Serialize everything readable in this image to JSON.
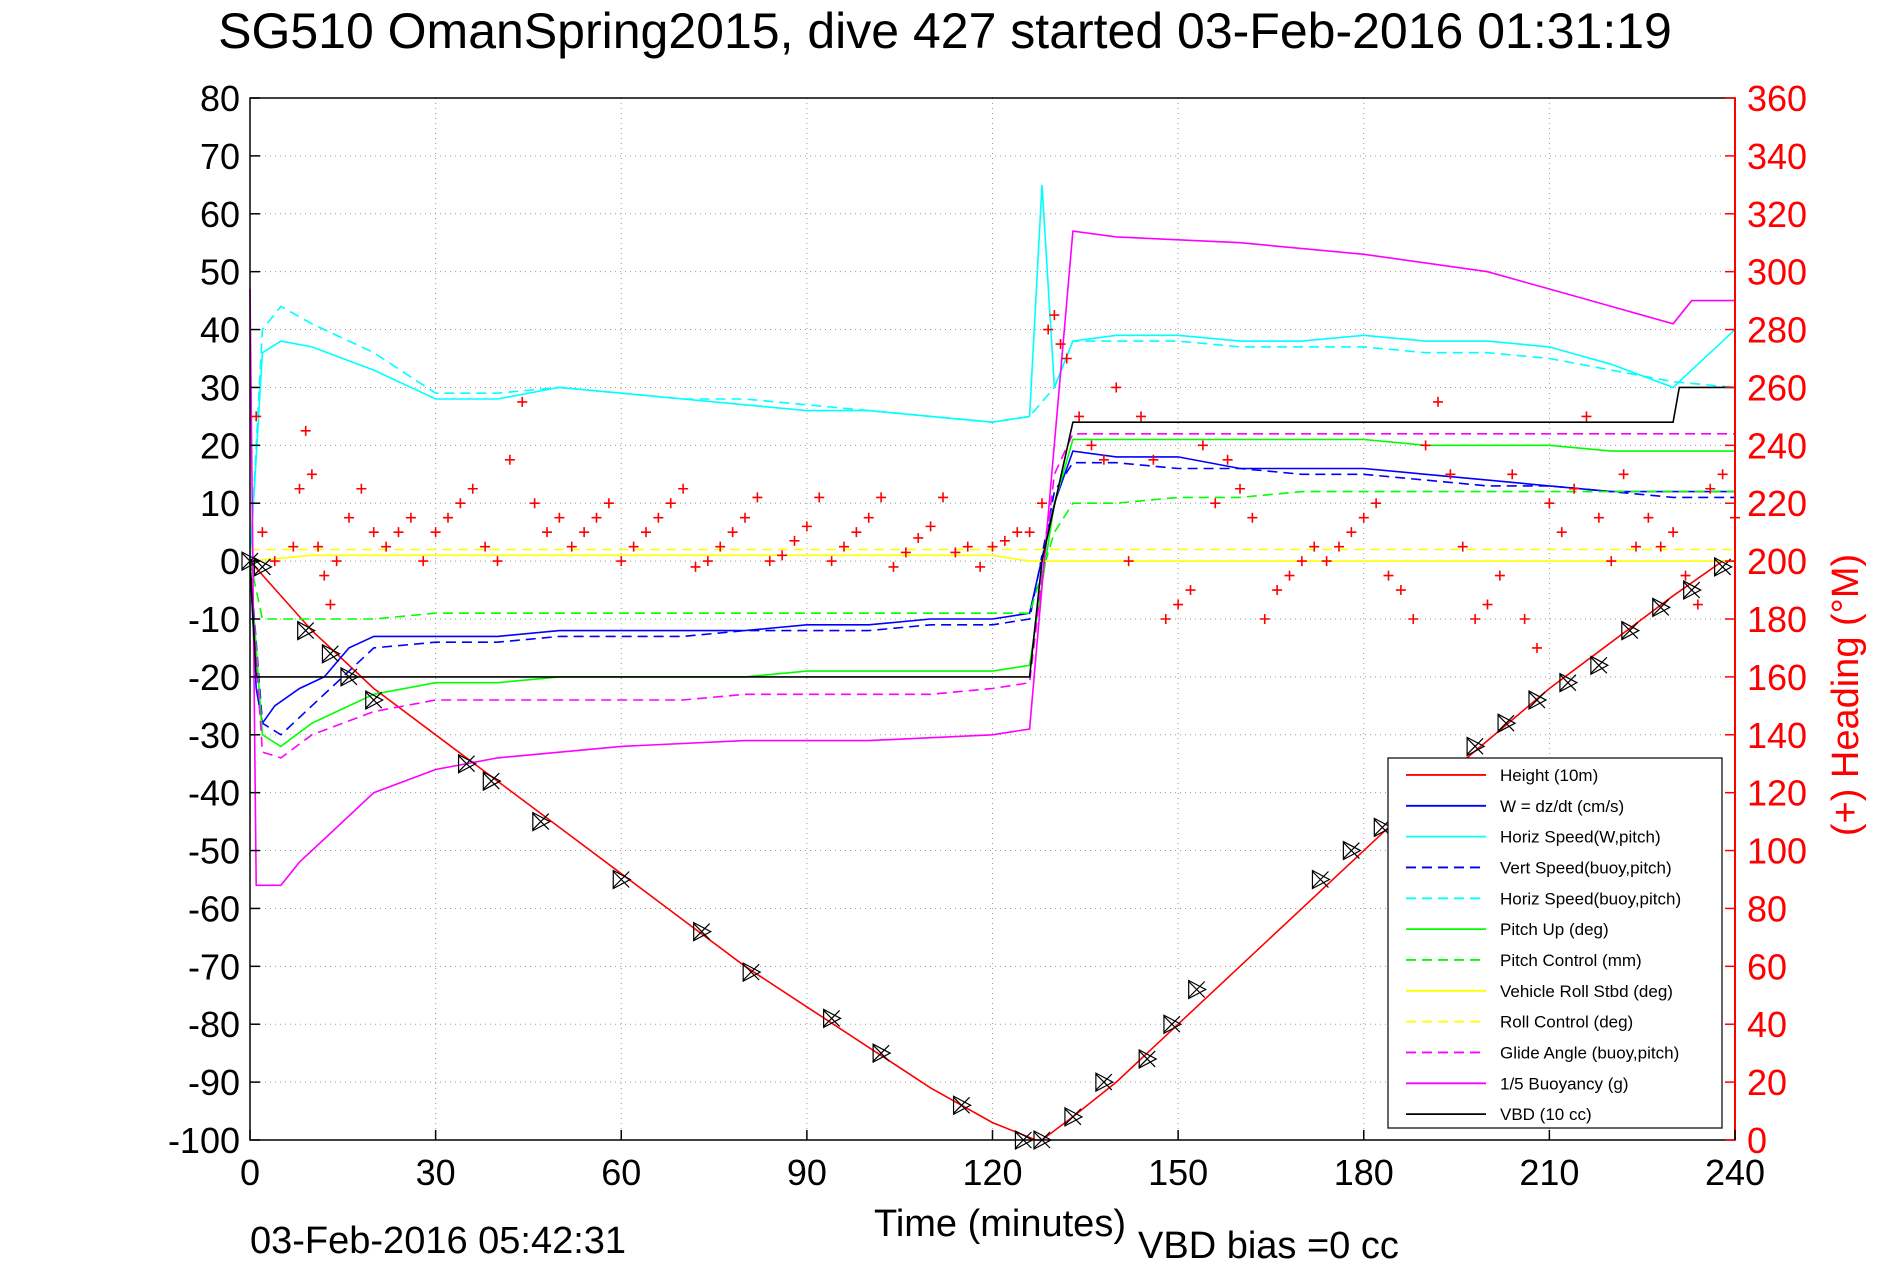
{
  "figure": {
    "title": "SG510 OmanSpring2015, dive 427 started 03-Feb-2016 01:31:19",
    "footer_left": "03-Feb-2016 05:42:31",
    "footer_right": "VBD bias =0 cc"
  },
  "chart_data": {
    "type": "line",
    "xlabel": "Time (minutes)",
    "ylabel": "",
    "ylabel_right": "(+) Heading (°M)",
    "xlim": [
      0,
      240
    ],
    "ylim": [
      -100,
      80
    ],
    "ylim_right": [
      0,
      360
    ],
    "xticks": [
      0,
      30,
      60,
      90,
      120,
      150,
      180,
      210,
      240
    ],
    "yticks": [
      -100,
      -90,
      -80,
      -70,
      -60,
      -50,
      -40,
      -30,
      -20,
      -10,
      0,
      10,
      20,
      30,
      40,
      50,
      60,
      70,
      80
    ],
    "yticks_right": [
      0,
      20,
      40,
      60,
      80,
      100,
      120,
      140,
      160,
      180,
      200,
      220,
      240,
      260,
      280,
      300,
      320,
      340,
      360
    ],
    "grid": true,
    "legend_position": "bottom-right",
    "colors": {
      "height": "#ff0000",
      "w": "#0000ff",
      "horiz": "#00ffff",
      "pitch": "#00ff00",
      "roll": "#ffff00",
      "glide": "#ff00ff",
      "buoyancy": "#ff00ff",
      "vbd": "#000000",
      "heading": "#ff0000",
      "right_axis": "#ff0000"
    },
    "series": [
      {
        "name": "Height (10m)",
        "style": "solid",
        "color": "#ff0000",
        "x": [
          0,
          10,
          20,
          30,
          40,
          50,
          60,
          70,
          80,
          90,
          100,
          110,
          120,
          127,
          128,
          133,
          140,
          150,
          160,
          170,
          180,
          190,
          200,
          210,
          220,
          230,
          238,
          240
        ],
        "y": [
          0,
          -12,
          -22,
          -30,
          -38,
          -46,
          -54,
          -62,
          -70,
          -77,
          -84,
          -91,
          -97,
          -100,
          -100,
          -96,
          -90,
          -80,
          -70,
          -60,
          -50,
          -40,
          -31,
          -22,
          -14,
          -6,
          0,
          0
        ]
      },
      {
        "name": "W = dz/dt (cm/s)",
        "style": "solid",
        "color": "#0000ff",
        "x": [
          0,
          1,
          2,
          4,
          8,
          12,
          16,
          20,
          30,
          40,
          50,
          60,
          70,
          80,
          90,
          100,
          110,
          120,
          126,
          130,
          133,
          140,
          150,
          160,
          170,
          180,
          190,
          200,
          210,
          220,
          230,
          240
        ],
        "y": [
          0,
          -22,
          -28,
          -25,
          -22,
          -20,
          -15,
          -13,
          -13,
          -13,
          -12,
          -12,
          -12,
          -12,
          -11,
          -11,
          -10,
          -10,
          -9,
          10,
          19,
          18,
          18,
          16,
          16,
          16,
          15,
          14,
          13,
          12,
          12,
          12
        ]
      },
      {
        "name": "Horiz Speed(W,pitch)",
        "style": "solid",
        "color": "#00ffff",
        "x": [
          0,
          2,
          5,
          10,
          20,
          30,
          40,
          50,
          60,
          70,
          80,
          90,
          100,
          110,
          120,
          126,
          128,
          130,
          133,
          140,
          150,
          160,
          170,
          180,
          190,
          200,
          210,
          220,
          230,
          240
        ],
        "y": [
          0,
          36,
          38,
          37,
          33,
          28,
          28,
          30,
          29,
          28,
          27,
          26,
          26,
          25,
          24,
          25,
          65,
          30,
          38,
          39,
          39,
          38,
          38,
          39,
          38,
          38,
          37,
          34,
          30,
          40
        ]
      },
      {
        "name": "Vert Speed(buoy,pitch)",
        "style": "dashed",
        "color": "#0000ff",
        "x": [
          0,
          2,
          5,
          10,
          20,
          30,
          40,
          50,
          60,
          70,
          80,
          90,
          100,
          110,
          120,
          126,
          130,
          133,
          140,
          150,
          160,
          170,
          180,
          190,
          200,
          210,
          220,
          230,
          240
        ],
        "y": [
          0,
          -28,
          -30,
          -25,
          -15,
          -14,
          -14,
          -13,
          -13,
          -13,
          -12,
          -12,
          -12,
          -11,
          -11,
          -10,
          12,
          17,
          17,
          16,
          16,
          15,
          15,
          14,
          13,
          13,
          12,
          11,
          11
        ]
      },
      {
        "name": "Horiz Speed(buoy,pitch)",
        "style": "dashed",
        "color": "#00ffff",
        "x": [
          0,
          2,
          5,
          10,
          20,
          30,
          40,
          50,
          60,
          70,
          80,
          90,
          100,
          110,
          120,
          126,
          130,
          133,
          140,
          150,
          160,
          170,
          180,
          190,
          200,
          210,
          220,
          230,
          240
        ],
        "y": [
          0,
          40,
          44,
          41,
          36,
          29,
          29,
          30,
          29,
          28,
          28,
          27,
          26,
          25,
          24,
          25,
          30,
          38,
          38,
          38,
          37,
          37,
          37,
          36,
          36,
          35,
          33,
          31,
          30
        ]
      },
      {
        "name": "Pitch Up (deg)",
        "style": "solid",
        "color": "#00ff00",
        "x": [
          0,
          2,
          5,
          10,
          20,
          30,
          40,
          50,
          60,
          70,
          80,
          90,
          100,
          110,
          120,
          126,
          130,
          133,
          140,
          150,
          160,
          170,
          180,
          190,
          200,
          210,
          220,
          230,
          240
        ],
        "y": [
          0,
          -30,
          -32,
          -28,
          -23,
          -21,
          -21,
          -20,
          -20,
          -20,
          -20,
          -19,
          -19,
          -19,
          -19,
          -18,
          10,
          21,
          21,
          21,
          21,
          21,
          21,
          20,
          20,
          20,
          19,
          19,
          19
        ]
      },
      {
        "name": "Pitch Control (mm)",
        "style": "dashed",
        "color": "#00ff00",
        "x": [
          0,
          2,
          5,
          10,
          20,
          30,
          40,
          50,
          60,
          70,
          80,
          90,
          100,
          110,
          120,
          126,
          130,
          133,
          140,
          150,
          160,
          170,
          180,
          190,
          200,
          210,
          220,
          230,
          240
        ],
        "y": [
          0,
          -10,
          -10,
          -10,
          -10,
          -9,
          -9,
          -9,
          -9,
          -9,
          -9,
          -9,
          -9,
          -9,
          -9,
          -9,
          5,
          10,
          10,
          11,
          11,
          12,
          12,
          12,
          12,
          12,
          12,
          12,
          12
        ]
      },
      {
        "name": "Vehicle Roll Stbd (deg)",
        "style": "solid",
        "color": "#ffff00",
        "x": [
          0,
          10,
          20,
          30,
          40,
          50,
          60,
          70,
          80,
          90,
          100,
          110,
          120,
          126,
          130,
          140,
          150,
          160,
          170,
          180,
          190,
          200,
          210,
          220,
          230,
          240
        ],
        "y": [
          0,
          1,
          1,
          1,
          1,
          1,
          1,
          1,
          1,
          1,
          1,
          1,
          1,
          0,
          0,
          0,
          0,
          0,
          0,
          0,
          0,
          0,
          0,
          0,
          0,
          0
        ]
      },
      {
        "name": "Roll Control (deg)",
        "style": "dashed",
        "color": "#ffff00",
        "x": [
          0,
          10,
          20,
          30,
          40,
          50,
          60,
          70,
          80,
          90,
          100,
          110,
          120,
          126,
          130,
          140,
          150,
          160,
          170,
          180,
          190,
          200,
          210,
          220,
          230,
          240
        ],
        "y": [
          2,
          2,
          2,
          2,
          2,
          2,
          2,
          2,
          2,
          2,
          2,
          2,
          2,
          2,
          2,
          2,
          2,
          2,
          2,
          2,
          2,
          2,
          2,
          2,
          2,
          2
        ]
      },
      {
        "name": "Glide Angle (buoy,pitch)",
        "style": "dashed",
        "color": "#ff00ff",
        "x": [
          0,
          2,
          5,
          10,
          20,
          30,
          40,
          50,
          60,
          70,
          80,
          90,
          100,
          110,
          120,
          126,
          130,
          133,
          140,
          150,
          160,
          170,
          180,
          190,
          200,
          210,
          220,
          230,
          240
        ],
        "y": [
          0,
          -33,
          -34,
          -30,
          -26,
          -24,
          -24,
          -24,
          -24,
          -24,
          -23,
          -23,
          -23,
          -23,
          -22,
          -21,
          15,
          22,
          22,
          22,
          22,
          22,
          22,
          22,
          22,
          22,
          22,
          22,
          22
        ]
      },
      {
        "name": "1/5 Buoyancy (g)",
        "style": "solid",
        "color": "#ff00ff",
        "x": [
          0,
          1,
          5,
          8,
          12,
          20,
          30,
          40,
          60,
          80,
          100,
          120,
          126,
          133,
          140,
          160,
          180,
          200,
          210,
          220,
          230,
          233,
          240
        ],
        "y": [
          47,
          -56,
          -56,
          -52,
          -48,
          -40,
          -36,
          -34,
          -32,
          -31,
          -31,
          -30,
          -29,
          57,
          56,
          55,
          53,
          50,
          47,
          44,
          41,
          45,
          45
        ]
      },
      {
        "name": "VBD (10 cc)",
        "style": "solid",
        "color": "#000000",
        "x": [
          0,
          1,
          2,
          126,
          128,
          133,
          230,
          231,
          240
        ],
        "y": [
          0,
          -20,
          -20,
          -20,
          0,
          24,
          24,
          30,
          30
        ]
      }
    ],
    "heading_points": {
      "name": "Heading (°M)",
      "axis": "right",
      "x": [
        1,
        2,
        4,
        7,
        8,
        9,
        10,
        11,
        12,
        13,
        14,
        16,
        18,
        20,
        22,
        24,
        26,
        28,
        30,
        32,
        34,
        36,
        38,
        40,
        42,
        44,
        46,
        48,
        50,
        52,
        54,
        56,
        58,
        60,
        62,
        64,
        66,
        68,
        70,
        72,
        74,
        76,
        78,
        80,
        82,
        84,
        86,
        88,
        90,
        92,
        94,
        96,
        98,
        100,
        102,
        104,
        106,
        108,
        110,
        112,
        114,
        116,
        118,
        120,
        122,
        124,
        126,
        128,
        129,
        130,
        131,
        132,
        134,
        136,
        138,
        140,
        142,
        144,
        146,
        148,
        150,
        152,
        154,
        156,
        158,
        160,
        162,
        164,
        166,
        168,
        170,
        172,
        174,
        176,
        178,
        180,
        182,
        184,
        186,
        188,
        190,
        192,
        194,
        196,
        198,
        200,
        202,
        204,
        206,
        208,
        210,
        212,
        214,
        216,
        218,
        220,
        222,
        224,
        226,
        228,
        230,
        232,
        234,
        236,
        238,
        240
      ],
      "y": [
        250,
        210,
        200,
        205,
        225,
        245,
        230,
        205,
        195,
        185,
        200,
        215,
        225,
        210,
        205,
        210,
        215,
        200,
        210,
        215,
        220,
        225,
        205,
        200,
        235,
        255,
        220,
        210,
        215,
        205,
        210,
        215,
        220,
        200,
        205,
        210,
        215,
        220,
        225,
        198,
        200,
        205,
        210,
        215,
        222,
        200,
        202,
        207,
        212,
        222,
        200,
        205,
        210,
        215,
        222,
        198,
        203,
        208,
        212,
        222,
        203,
        205,
        198,
        205,
        207,
        210,
        210,
        220,
        280,
        285,
        275,
        270,
        250,
        240,
        235,
        260,
        200,
        250,
        235,
        180,
        185,
        190,
        240,
        220,
        235,
        225,
        215,
        180,
        190,
        195,
        200,
        205,
        200,
        205,
        210,
        215,
        220,
        195,
        190,
        180,
        240,
        255,
        230,
        205,
        180,
        185,
        195,
        230,
        180,
        170,
        220,
        210,
        225,
        250,
        215,
        200,
        230,
        205,
        215,
        205,
        210,
        195,
        185,
        225,
        230,
        215
      ]
    },
    "depth_markers": {
      "name": "Height (10m)",
      "x": [
        0,
        2,
        9,
        13,
        16,
        20,
        35,
        39,
        47,
        60,
        73,
        81,
        94,
        102,
        115,
        125,
        128,
        133,
        138,
        145,
        149,
        153,
        173,
        178,
        183,
        198,
        203,
        208,
        213,
        218,
        223,
        228,
        233,
        238
      ],
      "y": [
        0,
        -1,
        -12,
        -16,
        -20,
        -24,
        -35,
        -38,
        -45,
        -55,
        -64,
        -71,
        -79,
        -85,
        -94,
        -100,
        -100,
        -96,
        -90,
        -86,
        -80,
        -74,
        -55,
        -50,
        -46,
        -32,
        -28,
        -24,
        -21,
        -18,
        -12,
        -8,
        -5,
        -1
      ]
    }
  }
}
